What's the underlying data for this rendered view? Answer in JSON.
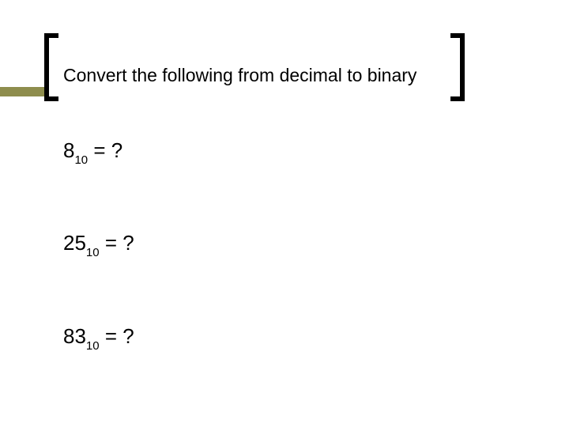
{
  "accent_color": "#8e8d4d",
  "title": "Convert the following from decimal to binary",
  "problems": [
    {
      "value": "8",
      "subscript": "10",
      "rhs": " = ?"
    },
    {
      "value": "25",
      "subscript": "10",
      "rhs": " = ?"
    },
    {
      "value": "83",
      "subscript": "10",
      "rhs": " = ?"
    }
  ]
}
